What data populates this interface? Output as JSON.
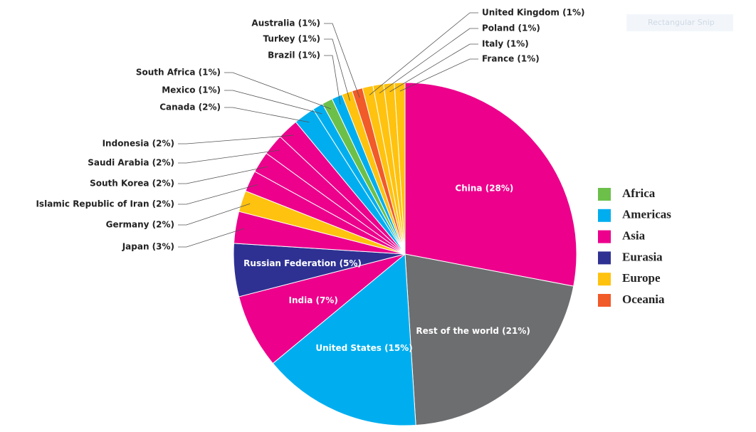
{
  "chart_data": {
    "type": "pie",
    "categories": [
      "China (28%)",
      "Rest of the world (21%)",
      "United States (15%)",
      "India (7%)",
      "Russian Federation (5%)",
      "Japan (3%)",
      "Germany (2%)",
      "Islamic Republic of Iran (2%)",
      "South Korea (2%)",
      "Saudi Arabia (2%)",
      "Indonesia (2%)",
      "Canada (2%)",
      "Mexico (1%)",
      "South Africa (1%)",
      "Brazil (1%)",
      "Turkey (1%)",
      "Australia (1%)",
      "United Kingdom (1%)",
      "Poland (1%)",
      "Italy (1%)",
      "France (1%)"
    ],
    "values": [
      28,
      21,
      15,
      7,
      5,
      3,
      2,
      2,
      2,
      2,
      2,
      2,
      1,
      1,
      1,
      1,
      1,
      1,
      1,
      1,
      1
    ],
    "colors": [
      "#ec008c",
      "#6d6e70",
      "#00aeef",
      "#ec008c",
      "#2e3192",
      "#ec008c",
      "#ffc20e",
      "#ec008c",
      "#ec008c",
      "#ec008c",
      "#ec008c",
      "#00aeef",
      "#00aeef",
      "#6cc04a",
      "#00aeef",
      "#ffc20e",
      "#f15a29",
      "#ffc20e",
      "#ffc20e",
      "#ffc20e",
      "#ffc20e"
    ],
    "legend": [
      {
        "name": "Africa",
        "color": "#6cc04a"
      },
      {
        "name": "Americas",
        "color": "#00aeef"
      },
      {
        "name": "Asia",
        "color": "#ec008c"
      },
      {
        "name": "Eurasia",
        "color": "#2e3192"
      },
      {
        "name": "Europe",
        "color": "#ffc20e"
      },
      {
        "name": "Oceania",
        "color": "#f15a29"
      }
    ]
  },
  "snip_label": "Rectangular Snip"
}
